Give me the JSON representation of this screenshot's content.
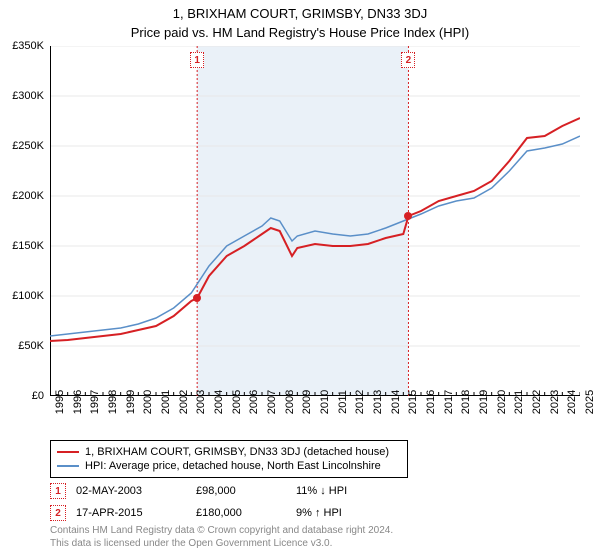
{
  "title": "1, BRIXHAM COURT, GRIMSBY, DN33 3DJ",
  "subtitle": "Price paid vs. HM Land Registry's House Price Index (HPI)",
  "chart": {
    "type": "line",
    "background_color": "#ffffff",
    "shaded_band_color": "#eaf1f8",
    "grid_color": "#e8e8e8",
    "axis_color": "#000000",
    "y": {
      "min": 0,
      "max": 350000,
      "step": 50000,
      "prefix": "£",
      "suffix_k": "K",
      "ticks": [
        "£0",
        "£50K",
        "£100K",
        "£150K",
        "£200K",
        "£250K",
        "£300K",
        "£350K"
      ]
    },
    "x": {
      "years_start": 1995,
      "years_end": 2025,
      "labels": [
        "1995",
        "1996",
        "1997",
        "1998",
        "1999",
        "2000",
        "2001",
        "2002",
        "2003",
        "2004",
        "2005",
        "2006",
        "2007",
        "2008",
        "2009",
        "2010",
        "2011",
        "2012",
        "2013",
        "2014",
        "2015",
        "2016",
        "2017",
        "2018",
        "2019",
        "2020",
        "2021",
        "2022",
        "2023",
        "2024",
        "2025"
      ]
    },
    "shaded_band": {
      "from_year": 2003.33,
      "to_year": 2015.29
    },
    "series_red": {
      "label": "1, BRIXHAM COURT, GRIMSBY, DN33 3DJ (detached house)",
      "color": "#d62024",
      "width": 2,
      "points": [
        [
          1995,
          55000
        ],
        [
          1996,
          56000
        ],
        [
          1997,
          58000
        ],
        [
          1998,
          60000
        ],
        [
          1999,
          62000
        ],
        [
          2000,
          66000
        ],
        [
          2001,
          70000
        ],
        [
          2002,
          80000
        ],
        [
          2003,
          95000
        ],
        [
          2003.33,
          98000
        ],
        [
          2004,
          120000
        ],
        [
          2005,
          140000
        ],
        [
          2006,
          150000
        ],
        [
          2007,
          162000
        ],
        [
          2007.5,
          168000
        ],
        [
          2008,
          165000
        ],
        [
          2008.7,
          140000
        ],
        [
          2009,
          148000
        ],
        [
          2010,
          152000
        ],
        [
          2011,
          150000
        ],
        [
          2012,
          150000
        ],
        [
          2013,
          152000
        ],
        [
          2014,
          158000
        ],
        [
          2015,
          162000
        ],
        [
          2015.29,
          180000
        ],
        [
          2016,
          185000
        ],
        [
          2017,
          195000
        ],
        [
          2018,
          200000
        ],
        [
          2019,
          205000
        ],
        [
          2020,
          215000
        ],
        [
          2021,
          235000
        ],
        [
          2022,
          258000
        ],
        [
          2023,
          260000
        ],
        [
          2024,
          270000
        ],
        [
          2025,
          278000
        ]
      ]
    },
    "series_blue": {
      "label": "HPI: Average price, detached house, North East Lincolnshire",
      "color": "#5a8fc8",
      "width": 1.5,
      "points": [
        [
          1995,
          60000
        ],
        [
          1996,
          62000
        ],
        [
          1997,
          64000
        ],
        [
          1998,
          66000
        ],
        [
          1999,
          68000
        ],
        [
          2000,
          72000
        ],
        [
          2001,
          78000
        ],
        [
          2002,
          88000
        ],
        [
          2003,
          103000
        ],
        [
          2004,
          130000
        ],
        [
          2005,
          150000
        ],
        [
          2006,
          160000
        ],
        [
          2007,
          170000
        ],
        [
          2007.5,
          178000
        ],
        [
          2008,
          175000
        ],
        [
          2008.7,
          155000
        ],
        [
          2009,
          160000
        ],
        [
          2010,
          165000
        ],
        [
          2011,
          162000
        ],
        [
          2012,
          160000
        ],
        [
          2013,
          162000
        ],
        [
          2014,
          168000
        ],
        [
          2015,
          175000
        ],
        [
          2016,
          182000
        ],
        [
          2017,
          190000
        ],
        [
          2018,
          195000
        ],
        [
          2019,
          198000
        ],
        [
          2020,
          208000
        ],
        [
          2021,
          225000
        ],
        [
          2022,
          245000
        ],
        [
          2023,
          248000
        ],
        [
          2024,
          252000
        ],
        [
          2025,
          260000
        ]
      ]
    },
    "markers": [
      {
        "n": "1",
        "year": 2003.33,
        "price": 98000,
        "color": "#d62024"
      },
      {
        "n": "2",
        "year": 2015.29,
        "price": 180000,
        "color": "#d62024"
      }
    ]
  },
  "sales": [
    {
      "n": "1",
      "date": "02-MAY-2003",
      "price": "£98,000",
      "diff": "11% ↓ HPI",
      "color": "#d62024"
    },
    {
      "n": "2",
      "date": "17-APR-2015",
      "price": "£180,000",
      "diff": "9% ↑ HPI",
      "color": "#d62024"
    }
  ],
  "footer": {
    "line1": "Contains HM Land Registry data © Crown copyright and database right 2024.",
    "line2": "This data is licensed under the Open Government Licence v3.0."
  }
}
